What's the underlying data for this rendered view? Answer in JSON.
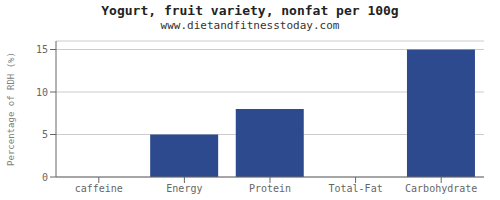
{
  "chart_data": {
    "type": "bar",
    "title": "Yogurt, fruit variety, nonfat per 100g",
    "subtitle": "www.dietandfitnesstoday.com",
    "categories": [
      "caffeine",
      "Energy",
      "Protein",
      "Total-Fat",
      "Carbohydrate"
    ],
    "values": [
      0,
      5,
      8,
      0,
      15
    ],
    "color": "#2e4a8e",
    "ylabel": "Percentage of RDH (%)",
    "ylim": [
      0,
      16
    ],
    "yticks": [
      0,
      5,
      10,
      15
    ],
    "grid": true
  }
}
